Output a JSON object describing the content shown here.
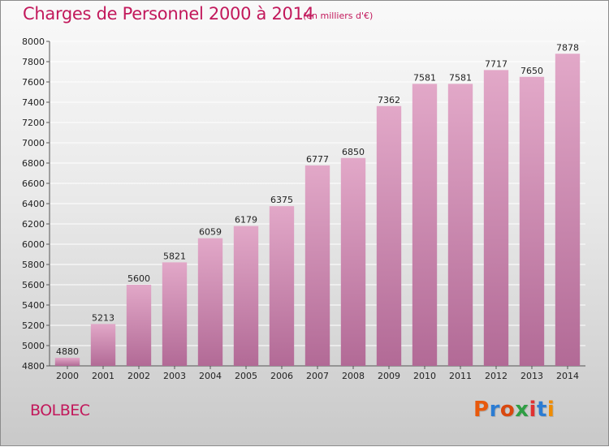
{
  "header": {
    "title": "Charges de Personnel 2000 à 2014",
    "unit": "(en milliers d'€)"
  },
  "footer": {
    "commune": "BOLBEC",
    "logo": "Proxiti"
  },
  "colors": {
    "title": "#c2185b",
    "bar_top": "#e2a8c8",
    "bar_bottom": "#b26a96",
    "gridline": "#ffffff",
    "logo_letters": [
      "#e8590c",
      "#2b7cd3",
      "#d9480f",
      "#2f9e44",
      "#e03131",
      "#2b7cd3",
      "#f08c00"
    ]
  },
  "chart_data": {
    "type": "bar",
    "title": "Charges de Personnel 2000 à 2014",
    "subtitle": "(en milliers d'€)",
    "categories": [
      "2000",
      "2001",
      "2002",
      "2003",
      "2004",
      "2005",
      "2006",
      "2007",
      "2008",
      "2009",
      "2010",
      "2011",
      "2012",
      "2013",
      "2014"
    ],
    "values": [
      4880,
      5213,
      5600,
      5821,
      6059,
      6179,
      6375,
      6777,
      6850,
      7362,
      7581,
      7581,
      7717,
      7650,
      7878
    ],
    "ylim": [
      4800,
      8000
    ],
    "yticks": [
      4800,
      5000,
      5200,
      5400,
      5600,
      5800,
      6000,
      6200,
      6400,
      6600,
      6800,
      7000,
      7200,
      7400,
      7600,
      7800,
      8000
    ],
    "grid": true,
    "legend": "none"
  }
}
